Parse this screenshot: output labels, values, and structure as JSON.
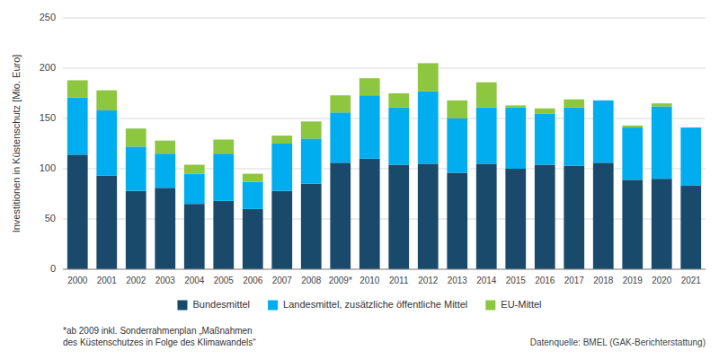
{
  "chart_data": {
    "type": "bar",
    "stacked": true,
    "categories": [
      "2000",
      "2001",
      "2002",
      "2003",
      "2004",
      "2005",
      "2006",
      "2007",
      "2008",
      "2009*",
      "2010",
      "2011",
      "2012",
      "2013",
      "2014",
      "2015",
      "2016",
      "2017",
      "2018",
      "2019",
      "2020",
      "2021"
    ],
    "series": [
      {
        "name": "Bundesmittel",
        "color": "#1A4A6B",
        "values": [
          114,
          93,
          78,
          81,
          65,
          68,
          60,
          78,
          85,
          106,
          110,
          104,
          105,
          96,
          105,
          100,
          104,
          103,
          106,
          89,
          90,
          83
        ]
      },
      {
        "name": "Landesmittel, zusätzliche öffentliche Mittel",
        "color": "#00AEEF",
        "values": [
          57,
          65,
          44,
          34,
          30,
          47,
          27,
          47,
          45,
          50,
          63,
          57,
          72,
          54,
          56,
          61,
          51,
          58,
          62,
          52,
          72,
          58
        ]
      },
      {
        "name": "EU-Mittel",
        "color": "#8DC63F",
        "values": [
          17,
          20,
          18,
          13,
          9,
          14,
          8,
          8,
          17,
          17,
          17,
          14,
          28,
          18,
          25,
          2,
          5,
          8,
          0,
          2,
          3,
          0
        ]
      }
    ],
    "y_label": "Investitionen in Küstenschutz [Mio. Euro]",
    "ylim": [
      0,
      250
    ],
    "yticks": [
      0,
      50,
      100,
      150,
      200,
      250
    ],
    "grid": true,
    "legend": "bottom",
    "annotations": [
      "*ab 2009 inkl. Sonderrahmenplan „Maßnahmen\ndes Küstenschutzes in Folge des Klimawandels“",
      "Datenquelle: BMEL (GAK-Berichterstattung)"
    ]
  }
}
